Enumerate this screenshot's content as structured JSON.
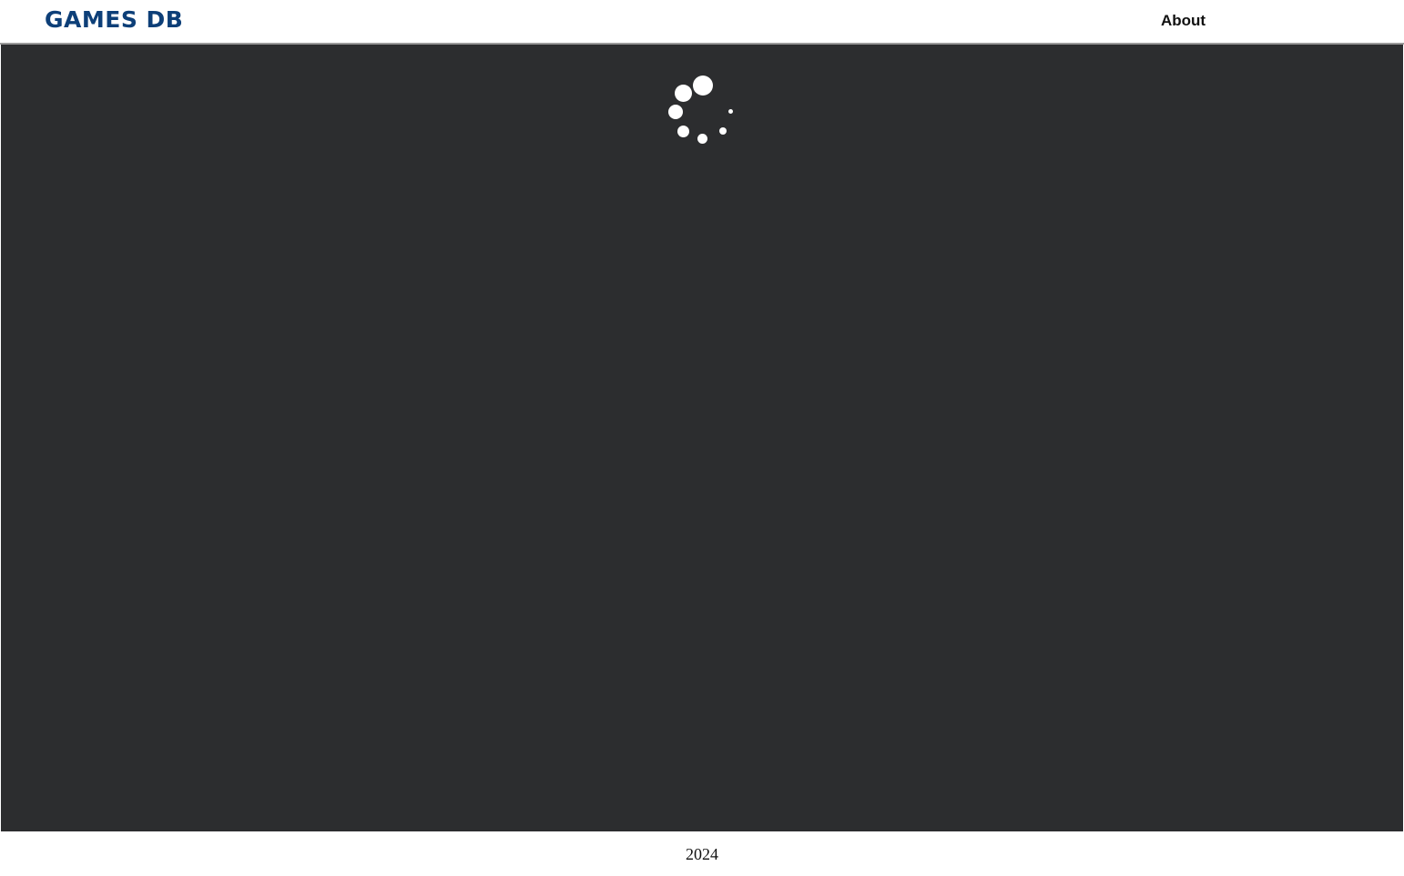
{
  "header": {
    "logo_text": "GAMES DB",
    "nav": {
      "about_label": "About"
    }
  },
  "main": {
    "status": "loading",
    "spinner_icon": "loading-spinner-icon"
  },
  "footer": {
    "year": "2024"
  },
  "colors": {
    "logo": "#0d3f78",
    "main_background": "#2c2d2f",
    "spinner": "#ffffff",
    "header_border": "#9a9a9a"
  }
}
